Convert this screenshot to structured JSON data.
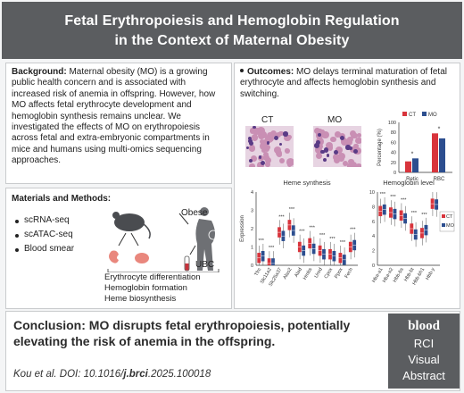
{
  "title": {
    "line1": "Fetal Erythropoiesis and Hemoglobin Regulation",
    "line2": "in the Context of Maternal Obesity"
  },
  "background": {
    "label": "Background:",
    "text": " Maternal obesity (MO) is a growing public health concern and is associated with increased risk of anemia in offspring. However, how MO affects fetal erythrocyte development and hemoglobin synthesis remains unclear. We investigated the effects of MO on erythropoiesis across fetal and extra-embryonic compartments in mice and humans using multi-omics sequencing approaches."
  },
  "methods": {
    "title": "Materials and Methods:",
    "items": [
      "scRNA-seq",
      "scATAC-seq",
      "Blood smear"
    ],
    "obese_label": "Obese",
    "ubc_label": "UBC",
    "footer": [
      "Erythrocyte differentiation",
      "Hemoglobin formation",
      "Heme biosynthesis"
    ]
  },
  "outcomes": {
    "label": "Outcomes:",
    "text": " MO delays terminal maturation of fetal erythrocyte and affects hemoglobin synthesis and switching.",
    "ct_label": "CT",
    "mo_label": "MO"
  },
  "colors": {
    "ct": "#d8343c",
    "mo": "#2c4e8f",
    "header": "#5b5d60"
  },
  "chart_data": [
    {
      "type": "bar",
      "ylabel": "Percentage (%)",
      "categories": [
        "Retic",
        "RBC"
      ],
      "series": [
        {
          "name": "CT",
          "values": [
            22,
            78
          ]
        },
        {
          "name": "MO",
          "values": [
            28,
            68
          ]
        }
      ],
      "ylim": [
        0,
        100
      ],
      "yticks": [
        "0",
        "20",
        "40",
        "60",
        "80",
        "100"
      ],
      "significance": [
        "*",
        "*"
      ],
      "legend": "top"
    },
    {
      "type": "box",
      "title": "Heme synthesis",
      "ylabel": "Expression",
      "ylim": [
        0,
        4
      ],
      "yticks": [
        "0",
        "1",
        "2",
        "3",
        "4"
      ],
      "categories": [
        "Tfrc",
        "Slc11a2",
        "Slc25a37",
        "Alas2",
        "Alad",
        "Hmbs",
        "Urod",
        "Cpox",
        "Ppox",
        "Fech"
      ],
      "series": [
        {
          "name": "CT",
          "medians": [
            0.4,
            0.1,
            1.8,
            2.2,
            1.0,
            1.2,
            0.8,
            0.6,
            0.4,
            1.0
          ]
        },
        {
          "name": "MO",
          "medians": [
            0.5,
            0.1,
            1.6,
            1.9,
            0.8,
            0.9,
            0.6,
            0.5,
            0.3,
            1.1
          ]
        }
      ],
      "significance": [
        "***",
        "***",
        "***",
        "***",
        "***",
        "***",
        "***",
        "***",
        "***",
        "***"
      ]
    },
    {
      "type": "box",
      "title": "Hemoglobin level",
      "ylim": [
        0,
        10
      ],
      "yticks": [
        "0",
        "2",
        "4",
        "6",
        "8",
        "10"
      ],
      "categories": [
        "Hba-a1",
        "Hba-a2",
        "Hbb-bs",
        "Hbb-bt",
        "Hbb-bh1",
        "Hbb-y"
      ],
      "series": [
        {
          "name": "CT",
          "medians": [
            7.4,
            7.2,
            6.8,
            5.0,
            4.4,
            8.4
          ]
        },
        {
          "name": "MO",
          "medians": [
            7.6,
            7.0,
            6.4,
            4.2,
            4.8,
            8.3
          ]
        }
      ],
      "significance": [
        "***",
        "***",
        "***",
        "***",
        "***",
        ""
      ],
      "legend": "right"
    }
  ],
  "conclusion": {
    "label": "Conclusion:",
    "text": " MO disrupts fetal erythropoiesis, potentially elevating the risk of anemia in the offspring."
  },
  "citation": {
    "prefix": "Kou et al. DOI: 10.1016/",
    "journal": "j.brci",
    "suffix": ".2025.100018"
  },
  "brand": {
    "logo": "blood",
    "line1": "RCI",
    "line2": "Visual",
    "line3": "Abstract"
  }
}
